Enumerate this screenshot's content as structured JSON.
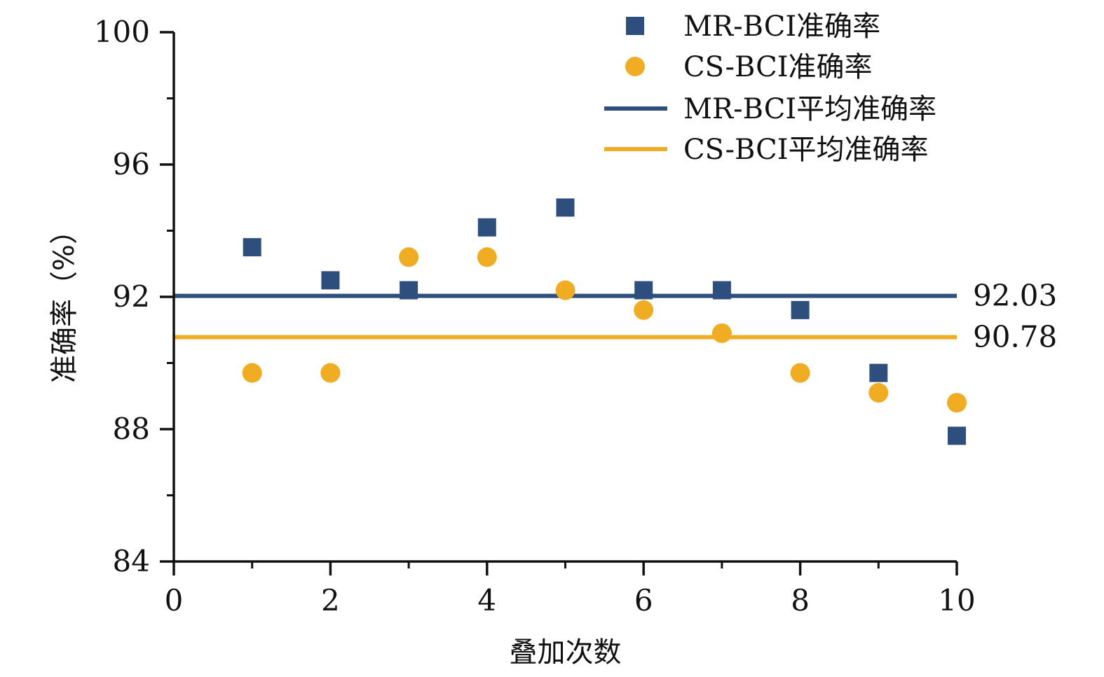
{
  "chart_data": {
    "type": "scatter",
    "xlabel": "叠加次数",
    "ylabel": "准确率（%）",
    "xlim": [
      0,
      10
    ],
    "ylim": [
      84,
      100
    ],
    "x_ticks": [
      "0",
      "2",
      "4",
      "6",
      "8",
      "10"
    ],
    "y_ticks": [
      "84",
      "88",
      "92",
      "96",
      "100"
    ],
    "x_tick_values": [
      0,
      2,
      4,
      6,
      8,
      10
    ],
    "y_tick_values": [
      84,
      88,
      92,
      96,
      100
    ],
    "x_minor_ticks": [
      1,
      3,
      5,
      7,
      9
    ],
    "y_minor_ticks": [
      86,
      90,
      94,
      98
    ],
    "legend_position": "top-right",
    "series": [
      {
        "name": "MR-BCI准确率",
        "marker": "square",
        "color": "#2e4f7e",
        "x": [
          1,
          2,
          3,
          4,
          5,
          6,
          7,
          8,
          9,
          10
        ],
        "y": [
          93.5,
          92.5,
          92.2,
          94.1,
          94.7,
          92.2,
          92.2,
          91.6,
          89.7,
          87.8
        ]
      },
      {
        "name": "CS-BCI准确率",
        "marker": "circle",
        "color": "#f0ac23",
        "x": [
          1,
          2,
          3,
          4,
          5,
          6,
          7,
          8,
          9,
          10
        ],
        "y": [
          89.7,
          89.7,
          93.2,
          93.2,
          92.2,
          91.6,
          90.9,
          89.7,
          89.1,
          88.8
        ]
      }
    ],
    "reference_lines": [
      {
        "name": "MR-BCI平均准确率",
        "value": 92.03,
        "label": "92.03",
        "color": "#2e4f7e"
      },
      {
        "name": "CS-BCI平均准确率",
        "value": 90.78,
        "label": "90.78",
        "color": "#f0ac23"
      }
    ],
    "grid": false
  }
}
